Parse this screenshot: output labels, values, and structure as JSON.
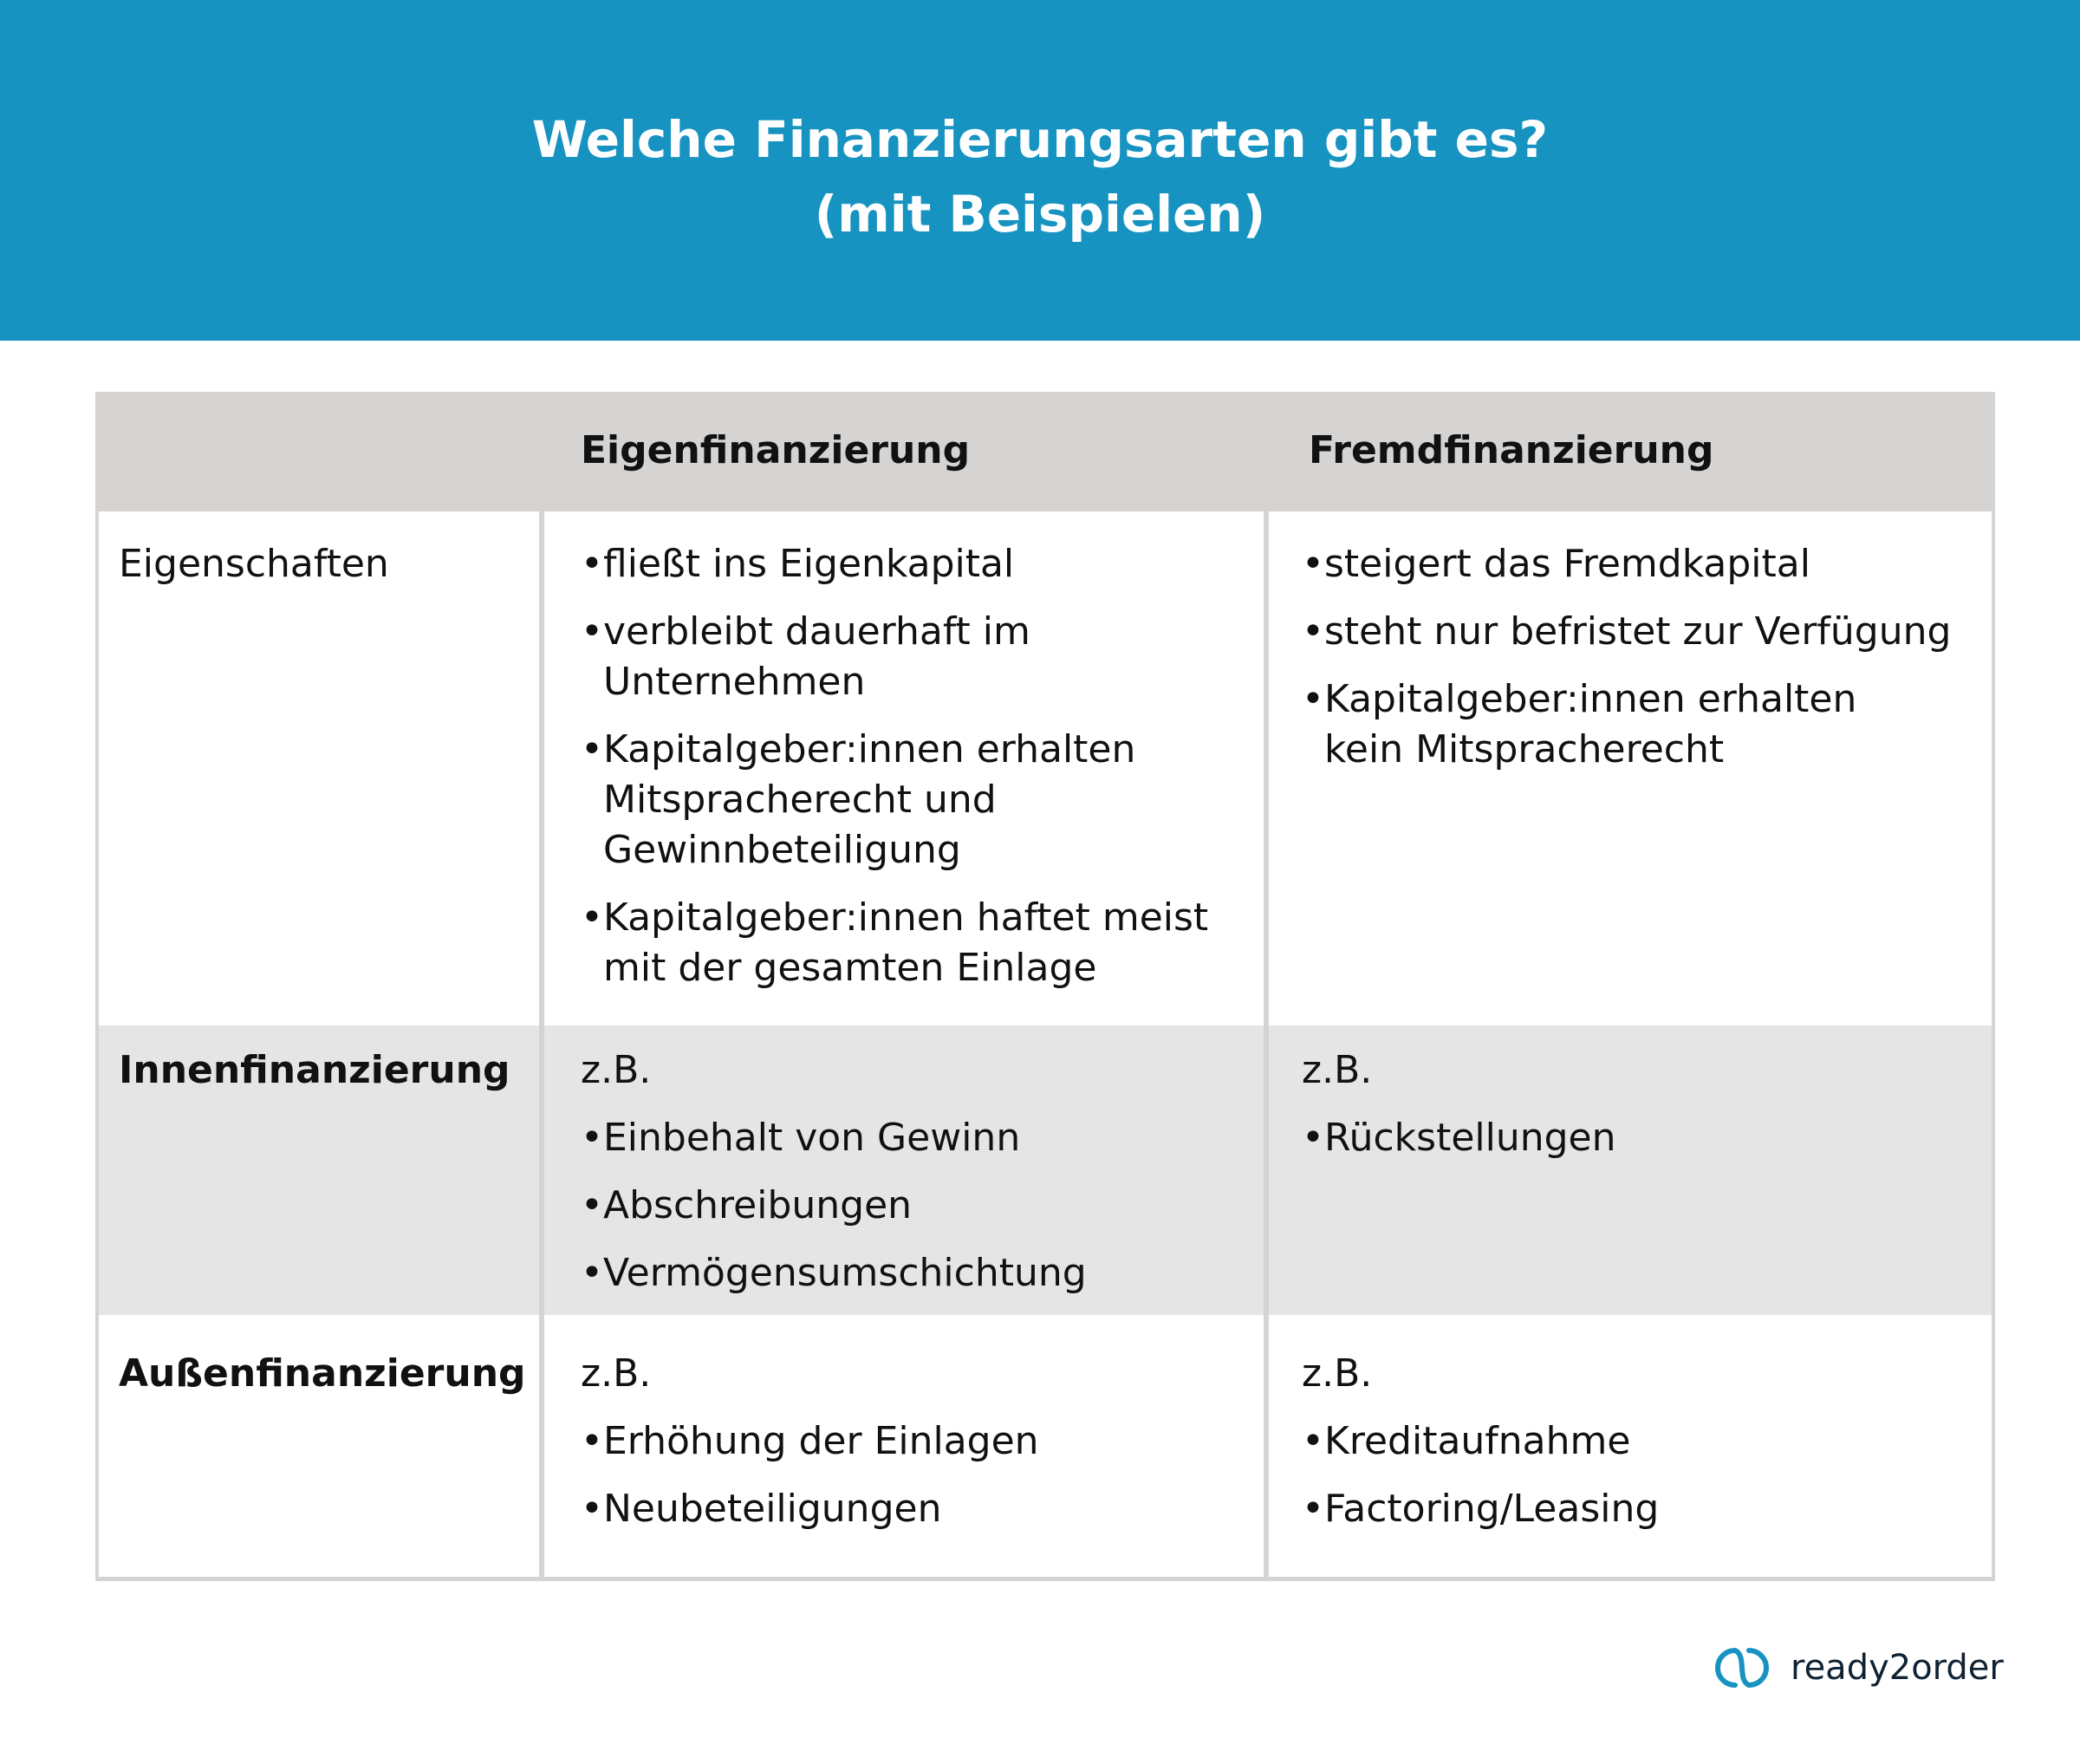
{
  "header": {
    "title_line1": "Welche Finanzierungsarten gibt es?",
    "title_line2": "(mit Beispielen)"
  },
  "table": {
    "columns": [
      "",
      "Eigenfinanzierung",
      "Fremdfinanzierung"
    ],
    "rows": [
      {
        "label": "Eigenschaften",
        "eigen": {
          "items": [
            "fließt ins Eigenkapital",
            "verbleibt dauerhaft im Unternehmen",
            "Kapitalgeber:innen erhalten Mitspracherecht und Gewinnbeteiligung",
            "Kapitalgeber:innen haftet meist mit der gesamten Einlage"
          ]
        },
        "fremd": {
          "items": [
            "steigert das Fremdkapital",
            "steht nur befristet zur Verfügung",
            "Kapitalgeber:innen erhalten kein Mitspracherecht"
          ]
        }
      },
      {
        "label": "Innenfinanzierung",
        "eigen": {
          "prefix": "z.B.",
          "items": [
            "Einbehalt von Gewinn",
            "Abschreibungen",
            "Vermögensumschichtung"
          ]
        },
        "fremd": {
          "prefix": "z.B.",
          "items": [
            "Rückstellungen"
          ]
        }
      },
      {
        "label": "Außenfinanzierung",
        "eigen": {
          "prefix": "z.B.",
          "items": [
            "Erhöhung der Einlagen",
            "Neubeteiligungen"
          ]
        },
        "fremd": {
          "prefix": "z.B.",
          "items": [
            "Kreditaufnahme",
            "Factoring/Leasing"
          ]
        }
      }
    ]
  },
  "logo": {
    "text": "ready2order",
    "color": "#1793c1"
  },
  "colors": {
    "header_bg": "#1793c1",
    "table_header_bg": "#d5d4d2",
    "alt_row_bg": "#e5e5e5"
  }
}
